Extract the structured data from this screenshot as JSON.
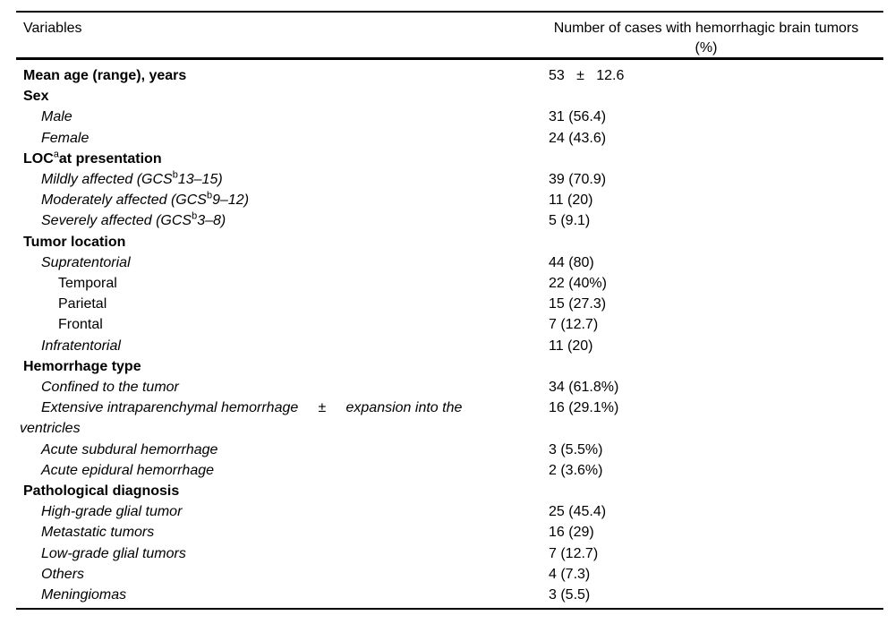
{
  "page": {
    "background_color": "#ffffff",
    "text_color": "#000000"
  },
  "table": {
    "header": {
      "variables_label": "Variables",
      "cases_label_line1": "Number of cases with hemorrhagic brain tumors",
      "cases_label_line2": "(%)"
    },
    "footnote_markers": [
      "a",
      "b"
    ],
    "rows": [
      {
        "name": "mean-age",
        "style": "bold",
        "indent": 1,
        "label": "Mean age (range), years",
        "value": "53   ±   12.6"
      },
      {
        "name": "sex",
        "style": "bold",
        "indent": 1,
        "label": "Sex",
        "value": ""
      },
      {
        "name": "male",
        "style": "italic",
        "indent": 2,
        "label": "Male",
        "value": "31 (56.4)"
      },
      {
        "name": "female",
        "style": "italic",
        "indent": 2,
        "label": "Female",
        "value": "24 (43.6)"
      },
      {
        "name": "loc-at-presentation",
        "style": "bold",
        "indent": 1,
        "sup": {
          "pre": "LOC",
          "sup": "a",
          "post": "at presentation"
        },
        "value": ""
      },
      {
        "name": "mildly-affected",
        "style": "italic",
        "indent": 2,
        "sup": {
          "pre": "Mildly affected (GCS",
          "sup": "b",
          "post": "13–15)"
        },
        "value": "39 (70.9)"
      },
      {
        "name": "moderately-affected",
        "style": "italic",
        "indent": 2,
        "sup": {
          "pre": "Moderately affected (GCS",
          "sup": "b",
          "post": "9–12)"
        },
        "value": "11 (20)"
      },
      {
        "name": "severely-affected",
        "style": "italic",
        "indent": 2,
        "sup": {
          "pre": "Severely affected (GCS",
          "sup": "b",
          "post": "3–8)"
        },
        "value": "5 (9.1)"
      },
      {
        "name": "tumor-location",
        "style": "bold",
        "indent": 1,
        "label": "Tumor location",
        "value": ""
      },
      {
        "name": "supratentorial",
        "style": "italic",
        "indent": 2,
        "label": "Supratentorial",
        "value": "44 (80)"
      },
      {
        "name": "temporal",
        "style": "regular",
        "indent": 3,
        "label": "Temporal",
        "value": "22 (40%)"
      },
      {
        "name": "parietal",
        "style": "regular",
        "indent": 3,
        "label": "Parietal",
        "value": "15 (27.3)"
      },
      {
        "name": "frontal",
        "style": "regular",
        "indent": 3,
        "label": "Frontal",
        "value": "7 (12.7)"
      },
      {
        "name": "infratentorial",
        "style": "italic",
        "indent": 2,
        "label": "Infratentorial",
        "value": "11 (20)"
      },
      {
        "name": "hemorrhage-type",
        "style": "bold",
        "indent": 1,
        "label": "Hemorrhage type",
        "value": ""
      },
      {
        "name": "confined-to-tumor",
        "style": "italic",
        "indent": 2,
        "label": "Confined to the tumor",
        "value": "34 (61.8%)"
      },
      {
        "name": "extensive-intraparenchymal",
        "style": "italic",
        "indent": 2,
        "hanging": true,
        "label": "Extensive intraparenchymal hemorrhage     ±     expansion into the\nventricles",
        "value": "16 (29.1%)"
      },
      {
        "name": "acute-subdural",
        "style": "italic",
        "indent": 2,
        "label": "Acute subdural hemorrhage",
        "value": "3 (5.5%)"
      },
      {
        "name": "acute-epidural",
        "style": "italic",
        "indent": 2,
        "label": "Acute epidural hemorrhage",
        "value": "2 (3.6%)"
      },
      {
        "name": "pathological-diagnosis",
        "style": "bold",
        "indent": 1,
        "label": "Pathological diagnosis",
        "value": ""
      },
      {
        "name": "high-grade-glial",
        "style": "italic",
        "indent": 2,
        "label": "High-grade glial tumor",
        "value": "25 (45.4)"
      },
      {
        "name": "metastatic-tumors",
        "style": "italic",
        "indent": 2,
        "label": "Metastatic tumors",
        "value": "16 (29)"
      },
      {
        "name": "low-grade-glial",
        "style": "italic",
        "indent": 2,
        "label": "Low-grade glial tumors",
        "value": "7 (12.7)"
      },
      {
        "name": "others",
        "style": "italic",
        "indent": 2,
        "label": "Others",
        "value": "4 (7.3)"
      },
      {
        "name": "meningiomas",
        "style": "italic",
        "indent": 2,
        "label": "Meningiomas",
        "value": "3 (5.5)"
      }
    ]
  }
}
